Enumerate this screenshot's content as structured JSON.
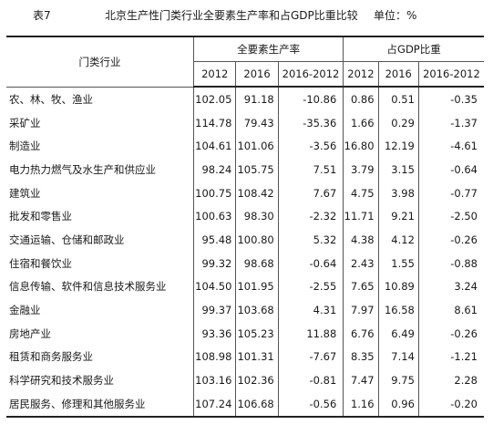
{
  "caption": {
    "number": "表7",
    "title": "北京生产性门类行业全要素生产率和占GDP比重比较",
    "unit": "单位：%"
  },
  "headers": {
    "industry": "门类行业",
    "group_tfp": "全要素生产率",
    "group_gdp": "占GDP比重",
    "tfp_cols": [
      "2012",
      "2016",
      "2016-2012"
    ],
    "gdp_cols": [
      "2012",
      "2016",
      "2016-2012"
    ]
  },
  "rows": [
    {
      "name": "农、林、牧、渔业",
      "tfp": [
        "102.05",
        "91.18",
        "-10.86"
      ],
      "gdp": [
        "0.86",
        "0.51",
        "-0.35"
      ]
    },
    {
      "name": "采矿业",
      "tfp": [
        "114.78",
        "79.43",
        "-35.36"
      ],
      "gdp": [
        "1.66",
        "0.29",
        "-1.37"
      ]
    },
    {
      "name": "制造业",
      "tfp": [
        "104.61",
        "101.06",
        "-3.56"
      ],
      "gdp": [
        "16.80",
        "12.19",
        "-4.61"
      ]
    },
    {
      "name": "电力热力燃气及水生产和供应业",
      "tfp": [
        "98.24",
        "105.75",
        "7.51"
      ],
      "gdp": [
        "3.79",
        "3.15",
        "-0.64"
      ]
    },
    {
      "name": "建筑业",
      "tfp": [
        "100.75",
        "108.42",
        "7.67"
      ],
      "gdp": [
        "4.75",
        "3.98",
        "-0.77"
      ]
    },
    {
      "name": "批发和零售业",
      "tfp": [
        "100.63",
        "98.30",
        "-2.32"
      ],
      "gdp": [
        "11.71",
        "9.21",
        "-2.50"
      ]
    },
    {
      "name": "交通运输、仓储和邮政业",
      "tfp": [
        "95.48",
        "100.80",
        "5.32"
      ],
      "gdp": [
        "4.38",
        "4.12",
        "-0.26"
      ]
    },
    {
      "name": "住宿和餐饮业",
      "tfp": [
        "99.32",
        "98.68",
        "-0.64"
      ],
      "gdp": [
        "2.43",
        "1.55",
        "-0.88"
      ]
    },
    {
      "name": "信息传输、软件和信息技术服务业",
      "tfp": [
        "104.50",
        "101.95",
        "-2.55"
      ],
      "gdp": [
        "7.65",
        "10.89",
        "3.24"
      ]
    },
    {
      "name": "金融业",
      "tfp": [
        "99.37",
        "103.68",
        "4.31"
      ],
      "gdp": [
        "7.97",
        "16.58",
        "8.61"
      ]
    },
    {
      "name": "房地产业",
      "tfp": [
        "93.36",
        "105.23",
        "11.88"
      ],
      "gdp": [
        "6.76",
        "6.49",
        "-0.26"
      ]
    },
    {
      "name": "租赁和商务服务业",
      "tfp": [
        "108.98",
        "101.31",
        "-7.67"
      ],
      "gdp": [
        "8.35",
        "7.14",
        "-1.21"
      ]
    },
    {
      "name": "科学研究和技术服务业",
      "tfp": [
        "103.16",
        "102.36",
        "-0.81"
      ],
      "gdp": [
        "7.47",
        "9.75",
        "2.28"
      ]
    },
    {
      "name": "居民服务、修理和其他服务业",
      "tfp": [
        "107.24",
        "106.68",
        "-0.56"
      ],
      "gdp": [
        "1.16",
        "0.96",
        "-0.20"
      ]
    }
  ]
}
